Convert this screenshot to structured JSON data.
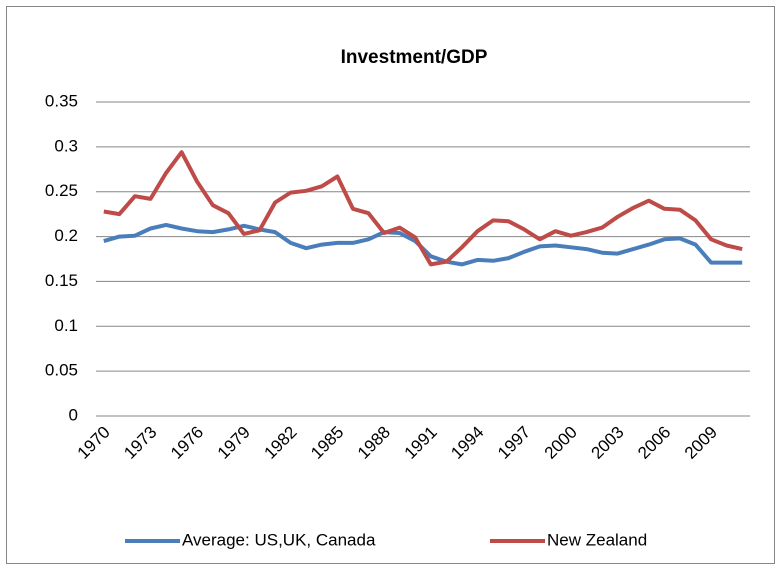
{
  "chart_data": {
    "type": "line",
    "title": "Investment/GDP",
    "categories": [
      "1970",
      null,
      null,
      "1973",
      null,
      null,
      "1976",
      null,
      null,
      "1979",
      null,
      null,
      "1982",
      null,
      null,
      "1985",
      null,
      null,
      "1988",
      null,
      null,
      "1991",
      null,
      null,
      "1994",
      null,
      null,
      "1997",
      null,
      null,
      "2000",
      null,
      null,
      "2003",
      null,
      null,
      "2006",
      null,
      null,
      "2009",
      null,
      null
    ],
    "series": [
      {
        "name": "Average: US,UK, Canada",
        "color": "#4a7ebb",
        "values": [
          0.195,
          0.2,
          0.201,
          0.209,
          0.213,
          0.209,
          0.206,
          0.205,
          0.208,
          0.212,
          0.208,
          0.205,
          0.193,
          0.187,
          0.191,
          0.193,
          0.193,
          0.197,
          0.205,
          0.204,
          0.195,
          0.178,
          0.172,
          0.169,
          0.174,
          0.173,
          0.176,
          0.183,
          0.189,
          0.19,
          0.188,
          0.186,
          0.182,
          0.181,
          0.186,
          0.191,
          0.197,
          0.198,
          0.191,
          0.171,
          0.171,
          0.171
        ]
      },
      {
        "name": "New Zealand",
        "color": "#be4b48",
        "values": [
          0.228,
          0.225,
          0.245,
          0.242,
          0.271,
          0.294,
          0.261,
          0.235,
          0.226,
          0.203,
          0.207,
          0.238,
          0.249,
          0.251,
          0.256,
          0.267,
          0.231,
          0.226,
          0.204,
          0.21,
          0.199,
          0.169,
          0.172,
          0.188,
          0.206,
          0.218,
          0.217,
          0.208,
          0.197,
          0.206,
          0.201,
          0.205,
          0.21,
          0.222,
          0.232,
          0.24,
          0.231,
          0.23,
          0.218,
          0.197,
          0.19,
          0.186
        ]
      }
    ],
    "ylim": [
      0,
      0.35
    ],
    "yticks": [
      0,
      0.05,
      0.1,
      0.15,
      0.2,
      0.25,
      0.3,
      0.35
    ],
    "grid": true,
    "legend": "bottom"
  }
}
